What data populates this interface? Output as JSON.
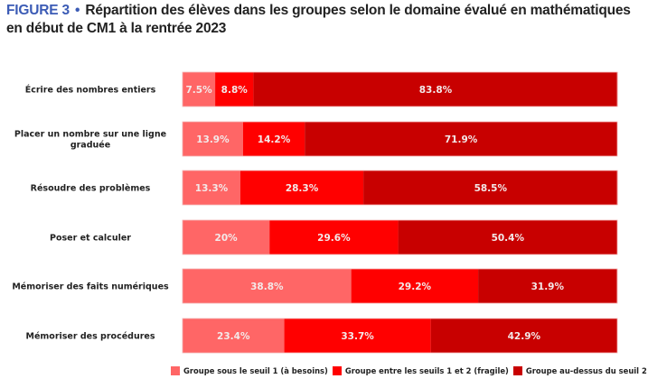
{
  "header": {
    "figure_label": "FIGURE 3",
    "separator": "•",
    "title": "Répartition des élèves dans les groupes selon le domaine évalué en mathématiques en début de CM1 à la rentrée 2023"
  },
  "colors": {
    "besoins": "#ff6666",
    "fragile": "#ff0000",
    "au_dessus": "#c80000"
  },
  "chart_data": {
    "type": "bar",
    "orientation": "horizontal",
    "stacked": true,
    "title": "Répartition des élèves dans les groupes selon le domaine évalué en mathématiques en début de CM1 à la rentrée 2023",
    "xlabel": "",
    "ylabel": "",
    "xlim": [
      0,
      100
    ],
    "grid": false,
    "legend_position": "bottom-right",
    "categories": [
      "Écrire des nombres entiers",
      "Placer un nombre sur une ligne graduée",
      "Résoudre des problèmes",
      "Poser et calculer",
      "Mémoriser des faits numériques",
      "Mémoriser des procédures"
    ],
    "category_lines": [
      [
        "Écrire des nombres entiers"
      ],
      [
        "Placer un nombre sur une ligne",
        "graduée"
      ],
      [
        "Résoudre des problèmes"
      ],
      [
        "Poser et calculer"
      ],
      [
        "Mémoriser des faits numériques"
      ],
      [
        "Mémoriser des procédures"
      ]
    ],
    "series": [
      {
        "name": "Groupe sous le seuil 1 (à besoins)",
        "color": "#ff6666",
        "values": [
          7.5,
          13.9,
          13.3,
          20,
          38.8,
          23.4
        ],
        "labels": [
          "7.5%",
          "13.9%",
          "13.3%",
          "20%",
          "38.8%",
          "23.4%"
        ]
      },
      {
        "name": "Groupe entre les seuils 1 et 2 (fragile)",
        "color": "#ff0000",
        "values": [
          8.8,
          14.2,
          28.3,
          29.6,
          29.2,
          33.7
        ],
        "labels": [
          "8.8%",
          "14.2%",
          "28.3%",
          "29.6%",
          "29.2%",
          "33.7%"
        ]
      },
      {
        "name": "Groupe au-dessus du seuil 2",
        "color": "#c80000",
        "values": [
          83.8,
          71.9,
          58.5,
          50.4,
          31.9,
          42.9
        ],
        "labels": [
          "83.8%",
          "71.9%",
          "58.5%",
          "50.4%",
          "31.9%",
          "42.9%"
        ]
      }
    ]
  }
}
